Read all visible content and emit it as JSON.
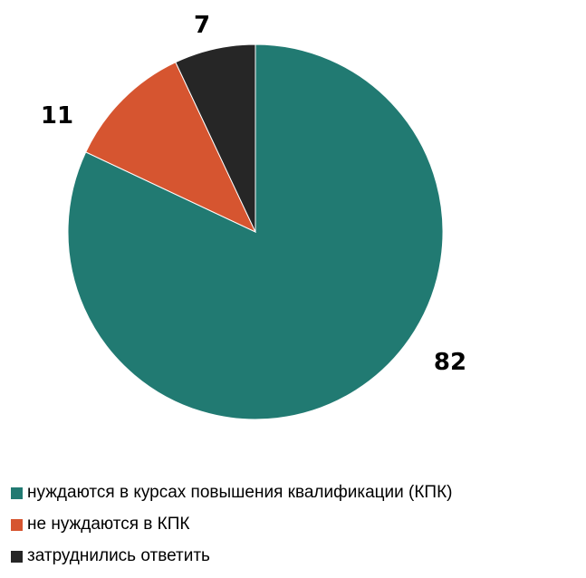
{
  "chart_data": {
    "type": "pie",
    "title": "",
    "categories": [
      "нуждаются в курсах повышения квалификации (КПК)",
      "не нуждаются в КПК",
      "затруднились ответить"
    ],
    "values": [
      82,
      11,
      7
    ],
    "value_labels": [
      "82",
      "11",
      "7"
    ],
    "colors": [
      "#217a72",
      "#d65530",
      "#262626"
    ],
    "legend_position": "bottom-left",
    "start": "top, clockwise"
  }
}
